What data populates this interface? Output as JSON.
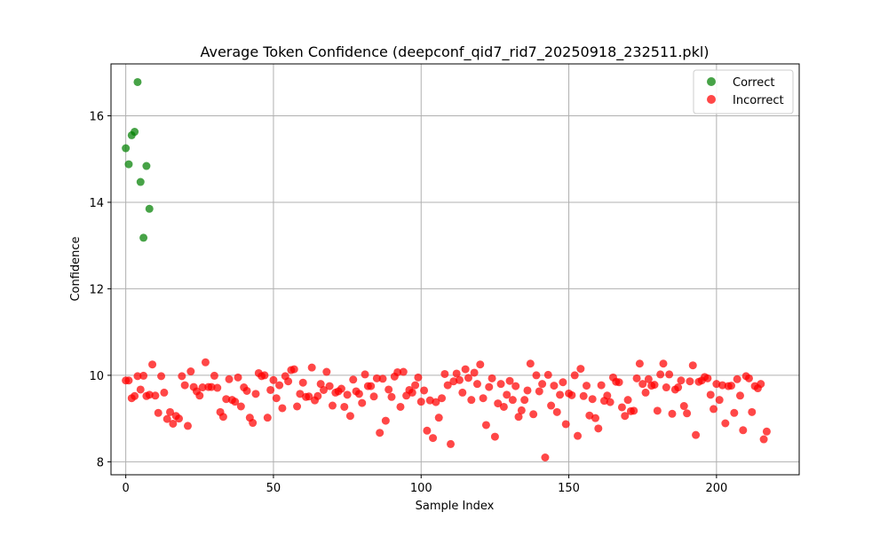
{
  "chart_data": {
    "type": "scatter",
    "title": "Average Token Confidence (deepconf_qid7_rid7_20250918_232511.pkl)",
    "xlabel": "Sample Index",
    "ylabel": "Confidence",
    "xlim": [
      -5,
      228
    ],
    "ylim": [
      7.7,
      17.2
    ],
    "x_ticks": [
      0,
      50,
      100,
      150,
      200
    ],
    "y_ticks": [
      8,
      10,
      12,
      14,
      16
    ],
    "grid": true,
    "legend_position": "top-right",
    "series": [
      {
        "name": "Correct",
        "color": "#008000",
        "points": [
          [
            0,
            15.25
          ],
          [
            1,
            14.88
          ],
          [
            2,
            15.55
          ],
          [
            3,
            15.63
          ],
          [
            4,
            16.78
          ],
          [
            5,
            14.47
          ],
          [
            6,
            13.18
          ],
          [
            7,
            14.84
          ],
          [
            8,
            13.85
          ]
        ]
      },
      {
        "name": "Incorrect",
        "color": "#ff0000",
        "points": [
          [
            0,
            9.88
          ],
          [
            1,
            9.88
          ],
          [
            2,
            9.47
          ],
          [
            3,
            9.52
          ],
          [
            4,
            9.98
          ],
          [
            5,
            9.67
          ],
          [
            6,
            9.99
          ],
          [
            7,
            9.52
          ],
          [
            8,
            9.55
          ],
          [
            9,
            10.25
          ],
          [
            10,
            9.53
          ],
          [
            11,
            9.13
          ],
          [
            12,
            9.98
          ],
          [
            13,
            9.6
          ],
          [
            14,
            8.99
          ],
          [
            15,
            9.15
          ],
          [
            16,
            8.88
          ],
          [
            17,
            9.06
          ],
          [
            18,
            9.0
          ],
          [
            19,
            9.98
          ],
          [
            20,
            9.77
          ],
          [
            21,
            8.83
          ],
          [
            22,
            10.09
          ],
          [
            23,
            9.73
          ],
          [
            24,
            9.63
          ],
          [
            25,
            9.53
          ],
          [
            26,
            9.72
          ],
          [
            27,
            10.3
          ],
          [
            28,
            9.73
          ],
          [
            29,
            9.73
          ],
          [
            30,
            9.99
          ],
          [
            31,
            9.71
          ],
          [
            32,
            9.15
          ],
          [
            33,
            9.04
          ],
          [
            34,
            9.45
          ],
          [
            35,
            9.91
          ],
          [
            36,
            9.43
          ],
          [
            37,
            9.39
          ],
          [
            38,
            9.95
          ],
          [
            39,
            9.28
          ],
          [
            40,
            9.72
          ],
          [
            41,
            9.64
          ],
          [
            42,
            9.02
          ],
          [
            43,
            8.9
          ],
          [
            44,
            9.57
          ],
          [
            45,
            10.05
          ],
          [
            46,
            9.98
          ],
          [
            47,
            10.0
          ],
          [
            48,
            9.02
          ],
          [
            49,
            9.66
          ],
          [
            50,
            9.89
          ],
          [
            51,
            9.47
          ],
          [
            52,
            9.77
          ],
          [
            53,
            9.24
          ],
          [
            54,
            9.98
          ],
          [
            55,
            9.86
          ],
          [
            56,
            10.12
          ],
          [
            57,
            10.14
          ],
          [
            58,
            9.28
          ],
          [
            59,
            9.57
          ],
          [
            60,
            9.83
          ],
          [
            61,
            9.5
          ],
          [
            62,
            9.51
          ],
          [
            63,
            10.18
          ],
          [
            64,
            9.42
          ],
          [
            65,
            9.52
          ],
          [
            66,
            9.8
          ],
          [
            67,
            9.66
          ],
          [
            68,
            10.08
          ],
          [
            69,
            9.75
          ],
          [
            70,
            9.3
          ],
          [
            71,
            9.6
          ],
          [
            72,
            9.63
          ],
          [
            73,
            9.69
          ],
          [
            74,
            9.27
          ],
          [
            75,
            9.55
          ],
          [
            76,
            9.06
          ],
          [
            77,
            9.9
          ],
          [
            78,
            9.63
          ],
          [
            79,
            9.57
          ],
          [
            80,
            9.36
          ],
          [
            81,
            10.02
          ],
          [
            82,
            9.75
          ],
          [
            83,
            9.75
          ],
          [
            84,
            9.51
          ],
          [
            85,
            9.93
          ],
          [
            86,
            8.67
          ],
          [
            87,
            9.92
          ],
          [
            88,
            8.95
          ],
          [
            89,
            9.67
          ],
          [
            90,
            9.5
          ],
          [
            91,
            9.97
          ],
          [
            92,
            10.07
          ],
          [
            93,
            9.27
          ],
          [
            94,
            10.08
          ],
          [
            95,
            9.53
          ],
          [
            96,
            9.66
          ],
          [
            97,
            9.6
          ],
          [
            98,
            9.77
          ],
          [
            99,
            9.95
          ],
          [
            100,
            9.39
          ],
          [
            101,
            9.65
          ],
          [
            102,
            8.72
          ],
          [
            103,
            9.42
          ],
          [
            104,
            8.55
          ],
          [
            105,
            9.38
          ],
          [
            106,
            9.02
          ],
          [
            107,
            9.47
          ],
          [
            108,
            10.03
          ],
          [
            109,
            9.77
          ],
          [
            110,
            8.41
          ],
          [
            111,
            9.86
          ],
          [
            112,
            10.04
          ],
          [
            113,
            9.89
          ],
          [
            114,
            9.6
          ],
          [
            115,
            10.14
          ],
          [
            116,
            9.94
          ],
          [
            117,
            9.43
          ],
          [
            118,
            10.06
          ],
          [
            119,
            9.8
          ],
          [
            120,
            10.25
          ],
          [
            121,
            9.47
          ],
          [
            122,
            8.85
          ],
          [
            123,
            9.73
          ],
          [
            124,
            9.93
          ],
          [
            125,
            8.58
          ],
          [
            126,
            9.35
          ],
          [
            127,
            9.8
          ],
          [
            128,
            9.27
          ],
          [
            129,
            9.55
          ],
          [
            130,
            9.87
          ],
          [
            131,
            9.43
          ],
          [
            132,
            9.75
          ],
          [
            133,
            9.04
          ],
          [
            134,
            9.19
          ],
          [
            135,
            9.43
          ],
          [
            136,
            9.65
          ],
          [
            137,
            10.27
          ],
          [
            138,
            9.1
          ],
          [
            139,
            10.0
          ],
          [
            140,
            9.63
          ],
          [
            141,
            9.8
          ],
          [
            142,
            8.1
          ],
          [
            143,
            10.01
          ],
          [
            144,
            9.3
          ],
          [
            145,
            9.76
          ],
          [
            146,
            9.15
          ],
          [
            147,
            9.55
          ],
          [
            148,
            9.84
          ],
          [
            149,
            8.87
          ],
          [
            150,
            9.58
          ],
          [
            151,
            9.54
          ],
          [
            152,
            10.0
          ],
          [
            153,
            8.6
          ],
          [
            154,
            10.15
          ],
          [
            155,
            9.52
          ],
          [
            156,
            9.76
          ],
          [
            157,
            9.07
          ],
          [
            158,
            9.45
          ],
          [
            159,
            9.01
          ],
          [
            160,
            8.77
          ],
          [
            161,
            9.77
          ],
          [
            162,
            9.41
          ],
          [
            163,
            9.53
          ],
          [
            164,
            9.38
          ],
          [
            165,
            9.95
          ],
          [
            166,
            9.85
          ],
          [
            167,
            9.84
          ],
          [
            168,
            9.26
          ],
          [
            169,
            9.06
          ],
          [
            170,
            9.43
          ],
          [
            171,
            9.17
          ],
          [
            172,
            9.18
          ],
          [
            173,
            9.93
          ],
          [
            174,
            10.27
          ],
          [
            175,
            9.8
          ],
          [
            176,
            9.6
          ],
          [
            177,
            9.91
          ],
          [
            178,
            9.76
          ],
          [
            179,
            9.78
          ],
          [
            180,
            9.18
          ],
          [
            181,
            10.02
          ],
          [
            182,
            10.27
          ],
          [
            183,
            9.72
          ],
          [
            184,
            10.02
          ],
          [
            185,
            9.11
          ],
          [
            186,
            9.67
          ],
          [
            187,
            9.72
          ],
          [
            188,
            9.88
          ],
          [
            189,
            9.29
          ],
          [
            190,
            9.12
          ],
          [
            191,
            9.86
          ],
          [
            192,
            10.23
          ],
          [
            193,
            8.62
          ],
          [
            194,
            9.85
          ],
          [
            195,
            9.88
          ],
          [
            196,
            9.96
          ],
          [
            197,
            9.93
          ],
          [
            198,
            9.55
          ],
          [
            199,
            9.22
          ],
          [
            200,
            9.8
          ],
          [
            201,
            9.43
          ],
          [
            202,
            9.77
          ],
          [
            203,
            8.89
          ],
          [
            204,
            9.75
          ],
          [
            205,
            9.76
          ],
          [
            206,
            9.13
          ],
          [
            207,
            9.91
          ],
          [
            208,
            9.53
          ],
          [
            209,
            8.73
          ],
          [
            210,
            9.98
          ],
          [
            211,
            9.93
          ],
          [
            212,
            9.15
          ],
          [
            213,
            9.75
          ],
          [
            214,
            9.7
          ],
          [
            215,
            9.8
          ],
          [
            216,
            8.52
          ],
          [
            217,
            8.7
          ]
        ]
      }
    ]
  }
}
